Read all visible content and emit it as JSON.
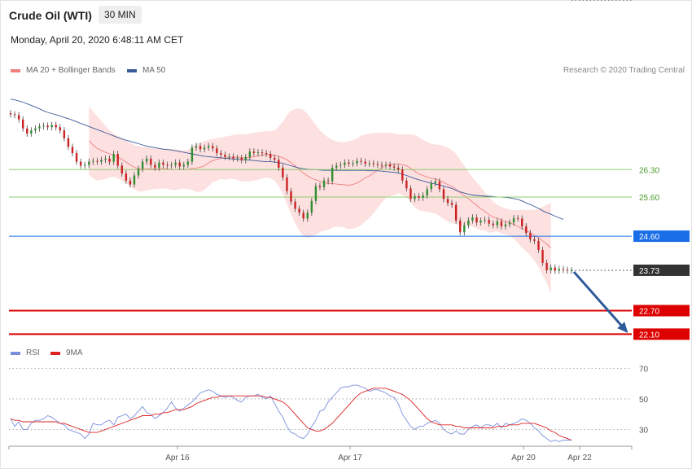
{
  "header": {
    "title": "Crude Oil (WTI)",
    "interval": "30 MIN",
    "datetime": "Monday, April 20, 2020 6:48:11 AM CET"
  },
  "legend": {
    "ma20_label": "MA 20 + Bollinger Bands",
    "ma50_label": "MA 50",
    "rsi_label": "RSI",
    "rsi_ma_label": "9MA",
    "copyright": "Research © 2020 Trading Central"
  },
  "colors": {
    "ma20": "#f08080",
    "ma50": "#3a5a9a",
    "band_fill": "#fde0e0",
    "bull": "#2f8f2f",
    "bear": "#cc2222",
    "green_level": "#8fcc70",
    "blue_level": "#1a6ee8",
    "red_level": "#dd0000",
    "arrow": "#2f5a9a",
    "rsi": "#7a8fdd",
    "rsi_ma": "#dd2222"
  },
  "chart_data": {
    "type": "candlestick",
    "price_ylim": [
      21.9,
      28.55
    ],
    "x_ticks": [
      "Apr 16",
      "Apr 17",
      "Apr 20",
      "Apr 22"
    ],
    "levels": [
      {
        "value": 26.3,
        "label": "26.30",
        "kind": "resistance"
      },
      {
        "value": 25.6,
        "label": "25.60",
        "kind": "resistance"
      },
      {
        "value": 24.6,
        "label": "24.60",
        "kind": "pivot"
      },
      {
        "value": 23.73,
        "label": "23.73",
        "kind": "last"
      },
      {
        "value": 22.7,
        "label": "22.70",
        "kind": "support"
      },
      {
        "value": 22.1,
        "label": "22.10",
        "kind": "support"
      }
    ],
    "close": [
      27.71,
      27.69,
      27.58,
      27.35,
      27.22,
      27.3,
      27.35,
      27.4,
      27.42,
      27.38,
      27.44,
      27.38,
      27.3,
      27.1,
      26.88,
      26.72,
      26.5,
      26.4,
      26.42,
      26.5,
      26.52,
      26.5,
      26.55,
      26.58,
      26.5,
      26.7,
      26.4,
      26.2,
      26.02,
      25.92,
      26.15,
      26.32,
      26.5,
      26.58,
      26.42,
      26.35,
      26.48,
      26.42,
      26.4,
      26.42,
      26.48,
      26.38,
      26.42,
      26.5,
      26.86,
      26.9,
      26.82,
      26.86,
      26.9,
      26.84,
      26.72,
      26.68,
      26.62,
      26.63,
      26.58,
      26.6,
      26.54,
      26.62,
      26.76,
      26.72,
      26.74,
      26.72,
      26.7,
      26.6,
      26.55,
      26.35,
      26.1,
      25.75,
      25.48,
      25.3,
      25.2,
      25.05,
      25.2,
      25.5,
      25.88,
      25.85,
      26.02,
      26.0,
      26.35,
      26.4,
      26.42,
      26.48,
      26.45,
      26.46,
      26.52,
      26.5,
      26.45,
      26.46,
      26.44,
      26.42,
      26.4,
      26.42,
      26.38,
      26.35,
      26.3,
      26.02,
      25.82,
      25.55,
      25.62,
      25.58,
      25.64,
      25.8,
      25.95,
      26.0,
      25.8,
      25.55,
      25.45,
      25.4,
      25.0,
      24.7,
      24.88,
      25.0,
      25.08,
      24.95,
      25.0,
      25.02,
      24.92,
      24.88,
      24.98,
      24.85,
      24.9,
      24.95,
      25.06,
      25.05,
      24.85,
      24.68,
      24.52,
      24.48,
      24.25,
      23.92,
      23.73,
      23.8,
      23.72,
      23.76,
      23.74,
      23.72,
      23.73
    ],
    "ma20": [
      null,
      null,
      null,
      null,
      null,
      null,
      null,
      null,
      null,
      null,
      null,
      null,
      null,
      null,
      null,
      null,
      null,
      null,
      null,
      27.04,
      26.93,
      26.84,
      26.79,
      26.74,
      26.7,
      26.67,
      26.62,
      26.56,
      26.49,
      26.42,
      26.36,
      26.32,
      26.31,
      26.32,
      26.32,
      26.32,
      26.32,
      26.33,
      26.32,
      26.3,
      26.3,
      26.3,
      26.3,
      26.3,
      26.33,
      26.34,
      26.36,
      26.4,
      26.47,
      26.53,
      26.56,
      26.59,
      26.59,
      26.61,
      26.62,
      26.62,
      26.6,
      26.6,
      26.61,
      26.63,
      26.65,
      26.67,
      26.69,
      26.68,
      26.66,
      26.64,
      26.6,
      26.55,
      26.48,
      26.39,
      26.3,
      26.21,
      26.14,
      26.08,
      26.04,
      26.0,
      25.97,
      25.94,
      25.94,
      25.93,
      25.92,
      25.91,
      25.9,
      25.92,
      25.96,
      26.02,
      26.09,
      26.14,
      26.21,
      26.28,
      26.35,
      26.41,
      26.43,
      26.43,
      26.45,
      26.42,
      26.4,
      26.33,
      26.26,
      26.19,
      26.15,
      26.11,
      26.08,
      26.06,
      26.02,
      25.97,
      25.92,
      25.87,
      25.8,
      25.71,
      25.63,
      25.56,
      25.47,
      25.39,
      25.3,
      25.23,
      25.15,
      25.09,
      25.06,
      25.01,
      24.98,
      24.95,
      24.9,
      24.85,
      24.79,
      24.74,
      24.69,
      24.62,
      24.56,
      24.48,
      24.4,
      24.3
    ],
    "ma20_upper": [
      null,
      null,
      null,
      null,
      null,
      null,
      null,
      null,
      null,
      null,
      null,
      null,
      null,
      null,
      null,
      null,
      null,
      null,
      null,
      27.91,
      27.78,
      27.66,
      27.54,
      27.42,
      27.3,
      27.22,
      27.16,
      27.1,
      27.03,
      26.98,
      26.92,
      26.9,
      26.88,
      26.87,
      26.85,
      26.84,
      26.83,
      26.84,
      26.83,
      26.82,
      26.82,
      26.8,
      26.79,
      26.8,
      26.88,
      26.95,
      26.99,
      27.02,
      27.06,
      27.08,
      27.1,
      27.12,
      27.14,
      27.16,
      27.18,
      27.2,
      27.2,
      27.2,
      27.22,
      27.24,
      27.26,
      27.27,
      27.28,
      27.28,
      27.3,
      27.4,
      27.52,
      27.68,
      27.8,
      27.85,
      27.86,
      27.82,
      27.72,
      27.58,
      27.44,
      27.3,
      27.2,
      27.12,
      27.06,
      27.02,
      27.0,
      27.0,
      27.02,
      27.05,
      27.1,
      27.16,
      27.2,
      27.22,
      27.23,
      27.24,
      27.24,
      27.24,
      27.24,
      27.22,
      27.2,
      27.2,
      27.2,
      27.2,
      27.18,
      27.12,
      27.06,
      27.0,
      26.96,
      26.94,
      26.93,
      26.9,
      26.86,
      26.8,
      26.7,
      26.55,
      26.4,
      26.25,
      26.1,
      25.98,
      25.85,
      25.72,
      25.61,
      25.48,
      25.4,
      25.35,
      25.31,
      25.28,
      25.26,
      25.27,
      25.27,
      25.27,
      25.27,
      25.27,
      25.3,
      25.35,
      25.4,
      25.45
    ],
    "ma20_lower": [
      null,
      null,
      null,
      null,
      null,
      null,
      null,
      null,
      null,
      null,
      null,
      null,
      null,
      null,
      null,
      null,
      null,
      null,
      null,
      26.17,
      26.08,
      26.02,
      26.04,
      26.06,
      26.1,
      26.12,
      26.08,
      26.02,
      25.95,
      25.86,
      25.8,
      25.74,
      25.74,
      25.77,
      25.79,
      25.8,
      25.81,
      25.82,
      25.81,
      25.78,
      25.78,
      25.8,
      25.81,
      25.8,
      25.78,
      25.73,
      25.73,
      25.78,
      25.88,
      25.98,
      26.02,
      26.06,
      26.04,
      26.06,
      26.06,
      26.04,
      26.0,
      26.0,
      26.0,
      26.02,
      26.04,
      26.07,
      26.1,
      26.08,
      26.02,
      25.88,
      25.68,
      25.42,
      25.16,
      24.93,
      24.74,
      24.6,
      24.56,
      24.58,
      24.64,
      24.7,
      24.74,
      24.76,
      24.82,
      24.84,
      24.84,
      24.82,
      24.78,
      24.79,
      24.82,
      24.88,
      24.98,
      25.06,
      25.19,
      25.32,
      25.46,
      25.58,
      25.62,
      25.64,
      25.7,
      25.64,
      25.6,
      25.46,
      25.34,
      25.26,
      25.24,
      25.22,
      25.2,
      25.18,
      25.11,
      25.04,
      24.98,
      24.94,
      24.9,
      24.87,
      24.86,
      24.87,
      24.84,
      24.8,
      24.75,
      24.74,
      24.69,
      24.7,
      24.72,
      24.67,
      24.65,
      24.62,
      24.54,
      24.43,
      24.31,
      24.21,
      24.11,
      23.97,
      23.82,
      23.61,
      23.4,
      23.15
    ],
    "ma50": [
      28.1,
      28.08,
      28.05,
      28.02,
      27.98,
      27.94,
      27.9,
      27.85,
      27.8,
      27.76,
      27.73,
      27.7,
      27.67,
      27.63,
      27.6,
      27.56,
      27.52,
      27.48,
      27.44,
      27.4,
      27.36,
      27.32,
      27.28,
      27.24,
      27.2,
      27.16,
      27.12,
      27.08,
      27.05,
      27.02,
      26.99,
      26.96,
      26.93,
      26.9,
      26.88,
      26.86,
      26.84,
      26.82,
      26.81,
      26.8,
      26.78,
      26.76,
      26.74,
      26.72,
      26.7,
      26.68,
      26.66,
      26.64,
      26.63,
      26.62,
      26.61,
      26.6,
      26.59,
      26.58,
      26.57,
      26.56,
      26.55,
      26.55,
      26.54,
      26.53,
      26.52,
      26.51,
      26.5,
      26.5,
      26.49,
      26.48,
      26.46,
      26.43,
      26.4,
      26.37,
      26.34,
      26.32,
      26.31,
      26.3,
      26.3,
      26.29,
      26.28,
      26.28,
      26.28,
      26.28,
      26.28,
      26.28,
      26.28,
      26.28,
      26.28,
      26.28,
      26.28,
      26.27,
      26.27,
      26.27,
      26.26,
      26.25,
      26.24,
      26.23,
      26.21,
      26.18,
      26.15,
      26.11,
      26.07,
      26.04,
      26.01,
      25.98,
      25.95,
      25.93,
      25.91,
      25.88,
      25.85,
      25.82,
      25.77,
      25.73,
      25.7,
      25.67,
      25.65,
      25.64,
      25.63,
      25.62,
      25.62,
      25.61,
      25.6,
      25.6,
      25.59,
      25.58,
      25.56,
      25.54,
      25.5,
      25.45,
      25.41,
      25.36,
      25.31,
      25.25,
      25.2,
      25.16,
      25.11,
      25.07,
      25.03
    ],
    "rsi_ylim": [
      19,
      74
    ],
    "rsi_ticks": [
      30,
      50,
      70
    ],
    "rsi": [
      37,
      32,
      35,
      30,
      30,
      34,
      36,
      36,
      37,
      39,
      38,
      36,
      34,
      33,
      30,
      29,
      28,
      27,
      24,
      27,
      34,
      33,
      33,
      35,
      36,
      33,
      38,
      39,
      40,
      37,
      39,
      42,
      45,
      41,
      40,
      37,
      39,
      41,
      44,
      48,
      44,
      42,
      44,
      46,
      48,
      51,
      54,
      55,
      56,
      55,
      53,
      52,
      51,
      52,
      51,
      49,
      48,
      51,
      52,
      52,
      53,
      51,
      50,
      52,
      47,
      42,
      38,
      32,
      28,
      27,
      25,
      24,
      27,
      32,
      36,
      42,
      43,
      48,
      51,
      54,
      57,
      58,
      58,
      59,
      59,
      58,
      57,
      55,
      56,
      56,
      55,
      54,
      52,
      51,
      47,
      40,
      36,
      32,
      30,
      32,
      32,
      34,
      35,
      36,
      34,
      30,
      28,
      27,
      29,
      27,
      27,
      30,
      32,
      33,
      31,
      33,
      33,
      32,
      34,
      31,
      34,
      33,
      34,
      35,
      37,
      36,
      34,
      31,
      29,
      26,
      24,
      22,
      23,
      22,
      23,
      23,
      23
    ],
    "rsi_ma": [
      37,
      36,
      36,
      35,
      35,
      35,
      35,
      35,
      35,
      35,
      35,
      35,
      34,
      34,
      33,
      32,
      31,
      30,
      29,
      28,
      28,
      28,
      29,
      30,
      31,
      32,
      33,
      34,
      35,
      36,
      37,
      38,
      39,
      39,
      39,
      40,
      40,
      41,
      41,
      42,
      43,
      43,
      43,
      44,
      45,
      47,
      48,
      49,
      50,
      51,
      51,
      52,
      52,
      52,
      52,
      52,
      52,
      52,
      52,
      52,
      52,
      52,
      51,
      51,
      50,
      49,
      48,
      46,
      43,
      40,
      37,
      34,
      31,
      30,
      29,
      29,
      30,
      32,
      34,
      37,
      40,
      43,
      46,
      49,
      52,
      54,
      55,
      56,
      57,
      57,
      57,
      57,
      56,
      55,
      54,
      53,
      51,
      49,
      46,
      43,
      40,
      37,
      35,
      34,
      33,
      33,
      33,
      33,
      32,
      32,
      31,
      31,
      31,
      31,
      31,
      31,
      31,
      31,
      32,
      32,
      32,
      33,
      33,
      33,
      34,
      34,
      34,
      34,
      33,
      32,
      31,
      29,
      28,
      26,
      25,
      24,
      23
    ]
  }
}
